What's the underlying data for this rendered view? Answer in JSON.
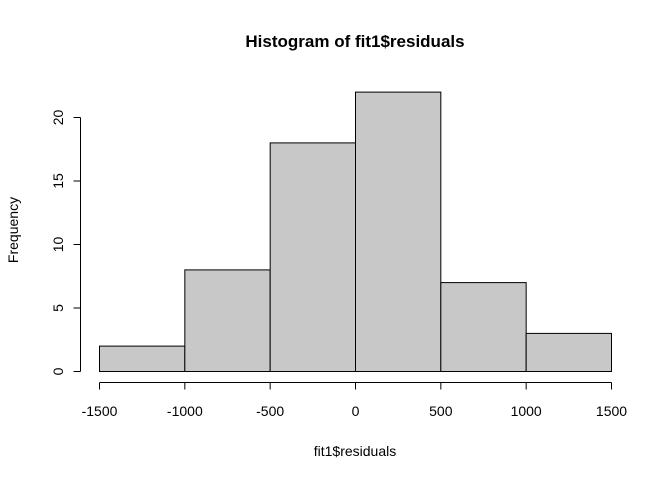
{
  "chart_data": {
    "type": "bar",
    "title": "Histogram of fit1$residuals",
    "xlabel": "fit1$residuals",
    "ylabel": "Frequency",
    "bins": [
      {
        "from": -1500,
        "to": -1000,
        "count": 2
      },
      {
        "from": -1000,
        "to": -500,
        "count": 8
      },
      {
        "from": -500,
        "to": 0,
        "count": 18
      },
      {
        "from": 0,
        "to": 500,
        "count": 22
      },
      {
        "from": 500,
        "to": 1000,
        "count": 7
      },
      {
        "from": 1000,
        "to": 1500,
        "count": 3
      }
    ],
    "xlim": [
      -1500,
      1500
    ],
    "ylim": [
      0,
      22
    ],
    "x_ticks": [
      -1500,
      -1000,
      -500,
      0,
      500,
      1000,
      1500
    ],
    "y_ticks": [
      0,
      5,
      10,
      15,
      20
    ],
    "bar_color": "#c8c8c8",
    "grid": false
  }
}
